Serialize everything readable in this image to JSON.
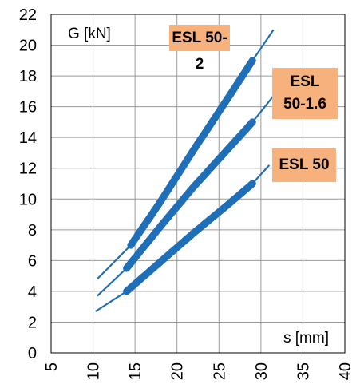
{
  "chart_data": {
    "type": "line",
    "ylabel": "G [kN]",
    "xlabel": "s [mm]",
    "xlim": [
      5,
      40
    ],
    "ylim": [
      0,
      22
    ],
    "x_ticks": [
      "5",
      "10",
      "15",
      "20",
      "25",
      "30",
      "35",
      "40"
    ],
    "y_ticks": [
      "0",
      "2",
      "4",
      "6",
      "8",
      "10",
      "12",
      "14",
      "16",
      "18",
      "20",
      "22"
    ],
    "grid": true,
    "line_color": "#1f6fb8",
    "label_color": "#f7b17d",
    "series": [
      {
        "name": "ESL 50-2",
        "x": [
          10.5,
          14.5,
          18,
          22,
          26,
          29,
          31.5
        ],
        "y": [
          4.8,
          7.0,
          9.8,
          13.2,
          16.5,
          19.0,
          21.0
        ],
        "highlight_range": [
          14.5,
          29
        ]
      },
      {
        "name": "ESL 50-1.6",
        "x": [
          10.5,
          14,
          18,
          22,
          26,
          29,
          31.5
        ],
        "y": [
          3.7,
          5.5,
          8.2,
          10.8,
          13.2,
          15.0,
          16.7
        ],
        "highlight_range": [
          14,
          29
        ]
      },
      {
        "name": "ESL 50",
        "x": [
          10.3,
          14,
          18,
          22,
          26,
          29,
          31
        ],
        "y": [
          2.7,
          4.0,
          5.9,
          7.8,
          9.6,
          11.0,
          12.2
        ],
        "highlight_range": [
          14,
          29
        ]
      }
    ]
  }
}
